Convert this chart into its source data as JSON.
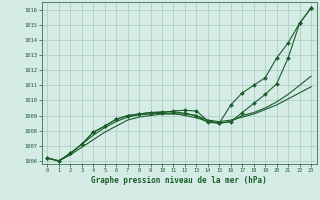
{
  "title": "Graphe pression niveau de la mer (hPa)",
  "background_color": "#d4ece5",
  "grid_color": "#a8ccc0",
  "line_color": "#1a5c2a",
  "ylim": [
    1005.8,
    1016.5
  ],
  "xlim": [
    -0.5,
    23.5
  ],
  "yticks": [
    1006,
    1007,
    1008,
    1009,
    1010,
    1011,
    1012,
    1013,
    1014,
    1015,
    1016
  ],
  "xticks": [
    0,
    1,
    2,
    3,
    4,
    5,
    6,
    7,
    8,
    9,
    10,
    11,
    12,
    13,
    14,
    15,
    16,
    17,
    18,
    19,
    20,
    21,
    22,
    23
  ],
  "series": [
    {
      "x": [
        0,
        1,
        2,
        3,
        4,
        5,
        6,
        7,
        8,
        9,
        10,
        11,
        12,
        13,
        14,
        15,
        16,
        17,
        18,
        19,
        20,
        21,
        22,
        23
      ],
      "y": [
        1006.2,
        1006.0,
        1006.4,
        1006.9,
        1007.4,
        1007.9,
        1008.3,
        1008.7,
        1008.9,
        1009.0,
        1009.1,
        1009.1,
        1009.1,
        1009.0,
        1008.7,
        1008.6,
        1008.7,
        1008.9,
        1009.1,
        1009.4,
        1009.7,
        1010.1,
        1010.5,
        1010.9
      ],
      "marker": null,
      "linewidth": 0.8
    },
    {
      "x": [
        0,
        1,
        2,
        3,
        4,
        5,
        6,
        7,
        8,
        9,
        10,
        11,
        12,
        13,
        14,
        15,
        16,
        17,
        18,
        19,
        20,
        21,
        22,
        23
      ],
      "y": [
        1006.2,
        1006.0,
        1006.5,
        1007.1,
        1007.7,
        1008.2,
        1008.6,
        1008.9,
        1009.05,
        1009.1,
        1009.15,
        1009.15,
        1009.0,
        1008.85,
        1008.6,
        1008.5,
        1008.6,
        1009.0,
        1009.2,
        1009.5,
        1009.9,
        1010.4,
        1011.0,
        1011.6
      ],
      "marker": null,
      "linewidth": 0.8
    },
    {
      "x": [
        0,
        1,
        2,
        3,
        4,
        5,
        6,
        7,
        8,
        9,
        10,
        11,
        12,
        13,
        14,
        15,
        16,
        17,
        18,
        19,
        20,
        21,
        22,
        23
      ],
      "y": [
        1006.2,
        1006.0,
        1006.5,
        1007.1,
        1007.9,
        1008.3,
        1008.75,
        1009.0,
        1009.1,
        1009.2,
        1009.2,
        1009.3,
        1009.35,
        1009.3,
        1008.65,
        1008.5,
        1008.6,
        1009.2,
        1009.8,
        1010.4,
        1011.1,
        1012.8,
        1015.1,
        1016.1
      ],
      "marker": "D",
      "markersize": 2.0,
      "linewidth": 0.8
    },
    {
      "x": [
        0,
        1,
        2,
        3,
        4,
        5,
        6,
        7,
        8,
        9,
        10,
        11,
        12,
        13,
        14,
        15,
        16,
        17,
        18,
        19,
        20,
        21,
        22,
        23
      ],
      "y": [
        1006.2,
        1006.0,
        1006.5,
        1007.1,
        1007.9,
        1008.3,
        1008.75,
        1009.0,
        1009.1,
        1009.2,
        1009.25,
        1009.25,
        1009.15,
        1009.0,
        1008.55,
        1008.5,
        1009.7,
        1010.5,
        1011.0,
        1011.5,
        1012.8,
        1013.8,
        1015.1,
        1016.1
      ],
      "marker": "D",
      "markersize": 2.0,
      "linewidth": 0.8
    }
  ]
}
